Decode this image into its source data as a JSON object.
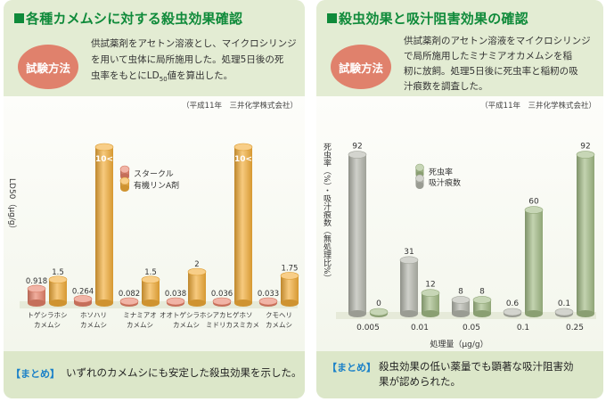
{
  "left": {
    "title": "各種カメムシに対する殺虫効果確認",
    "badge": "試験方法",
    "method": [
      "供試薬剤をアセトン溶液とし、マイクロシリンジ",
      "を用いて虫体に局所施用した。処理5日後の死",
      [
        "虫率をもとにLD",
        "50",
        "値を算出した。"
      ]
    ],
    "credit": "（平成11年　三井化学株式会社）",
    "summary_tag": "【まとめ】",
    "summary_text": "いずれのカメムシにも安定した殺虫効果を示した。"
  },
  "right": {
    "title": "殺虫効果と吸汁阻害効果の確認",
    "badge": "試験方法",
    "method": [
      "供試薬剤のアセトン溶液をマイクロシリンジ",
      "で局所施用したミナミアオカメムシを稲",
      "籾に放飼。処理5日後に死虫率と稲籾の吸",
      "汁痕数を調査した。"
    ],
    "credit": "（平成11年　三井化学株式会社）",
    "summary_tag": "【まとめ】",
    "summary_lines": [
      "殺虫効果の低い薬量でも顕著な吸汁阻害効",
      "果が認められた。"
    ]
  },
  "chart_data": [
    {
      "type": "bar",
      "ylabel": "LD50（μg/g）",
      "categories": [
        [
          "トゲシラホシ",
          "カメムシ"
        ],
        [
          "ホソハリ",
          "カメムシ"
        ],
        [
          "ミナミアオ",
          "カメムシ"
        ],
        [
          "オオトゲシラホシ",
          "カメムシ"
        ],
        [
          "アカヒゲホソ",
          "ミドリカスミカメ"
        ],
        [
          "クモヘリ",
          "カメムシ"
        ]
      ],
      "series": [
        {
          "name": "スタークル",
          "values": [
            0.918,
            0.264,
            0.082,
            0.038,
            0.036,
            0.033
          ],
          "labels": [
            "0.918",
            "0.264",
            "0.082",
            "0.038",
            "0.036",
            "0.033"
          ],
          "color": "#e8826a"
        },
        {
          "name": "有機リンA剤",
          "values": [
            1.5,
            10,
            1.5,
            2,
            10,
            1.75
          ],
          "labels": [
            "1.5",
            "10<",
            "1.5",
            "2",
            "10<",
            "1.75"
          ],
          "color": "#f3ad38"
        }
      ]
    },
    {
      "type": "bar",
      "ylabel": "死虫率（%）・吸汁痕数（無処理比%）",
      "xlabel": "処理量（μg/g）",
      "categories": [
        "0.005",
        "0.01",
        "0.05",
        "0.1",
        "0.25"
      ],
      "series": [
        {
          "name": "死虫率",
          "values": [
            0,
            12,
            8,
            60,
            92
          ],
          "labels": [
            "0",
            "12",
            "8",
            "60",
            "92"
          ],
          "color": "#a2bb86"
        },
        {
          "name": "吸汁痕数",
          "values": [
            92,
            31,
            8,
            0.6,
            0.1
          ],
          "labels": [
            "92",
            "31",
            "8",
            "0.6",
            "0.1"
          ],
          "color": "#b5b7ad"
        }
      ]
    }
  ]
}
